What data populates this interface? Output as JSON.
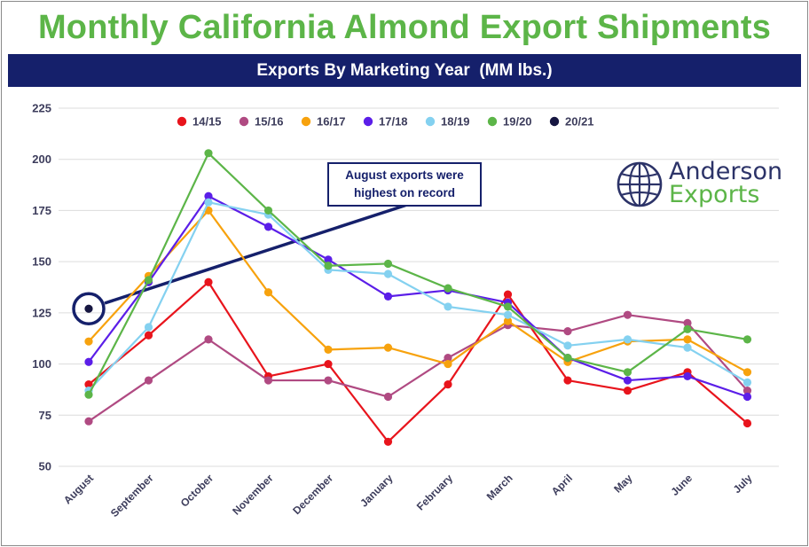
{
  "title": "Monthly California Almond Export Shipments",
  "subtitle": "Exports By Marketing Year  (MM lbs.)",
  "annotation": {
    "line1": "August exports were",
    "line2": "highest on record"
  },
  "logo": {
    "word1": "Anderson",
    "word2": "Exports",
    "icon": "globe-icon",
    "colors": {
      "word1": "#2c3368",
      "word2": "#5cb548"
    }
  },
  "colors": {
    "title": "#5cb548",
    "banner": "#15206b"
  },
  "chart_data": {
    "type": "line",
    "categories": [
      "August",
      "September",
      "October",
      "November",
      "December",
      "January",
      "February",
      "March",
      "April",
      "May",
      "June",
      "July"
    ],
    "ylim": [
      50,
      225
    ],
    "yticks": [
      50,
      75,
      100,
      125,
      150,
      175,
      200,
      225
    ],
    "grid": true,
    "legend_position": "top",
    "series": [
      {
        "name": "14/15",
        "color": "#e8141c",
        "values": [
          90,
          114,
          140,
          94,
          100,
          62,
          90,
          134,
          92,
          87,
          96,
          71
        ]
      },
      {
        "name": "15/16",
        "color": "#b04a82",
        "values": [
          72,
          92,
          112,
          92,
          92,
          84,
          103,
          119,
          116,
          124,
          120,
          87
        ]
      },
      {
        "name": "16/17",
        "color": "#f7a20d",
        "values": [
          111,
          143,
          175,
          135,
          107,
          108,
          100,
          121,
          101,
          111,
          112,
          96
        ]
      },
      {
        "name": "17/18",
        "color": "#5b1ee8",
        "values": [
          101,
          140,
          182,
          167,
          151,
          133,
          136,
          130,
          103,
          92,
          94,
          84
        ]
      },
      {
        "name": "18/19",
        "color": "#84d1f0",
        "values": [
          87,
          118,
          179,
          173,
          146,
          144,
          128,
          124,
          109,
          112,
          108,
          91
        ]
      },
      {
        "name": "19/20",
        "color": "#5cb548",
        "values": [
          85,
          141,
          203,
          175,
          148,
          149,
          137,
          128,
          103,
          96,
          117,
          112
        ]
      },
      {
        "name": "20/21",
        "color": "#161641",
        "values": [
          127,
          null,
          null,
          null,
          null,
          null,
          null,
          null,
          null,
          null,
          null,
          null
        ]
      }
    ]
  }
}
